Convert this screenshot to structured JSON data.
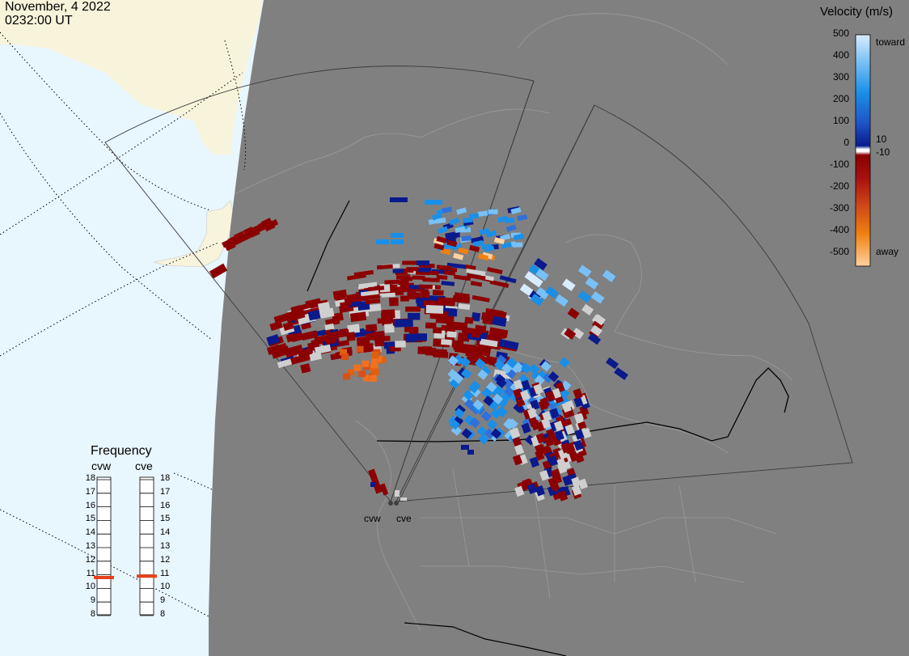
{
  "header": {
    "date": "November, 4 2022",
    "time": "0232:00 UT"
  },
  "colorbar": {
    "title": "Velocity (m/s)",
    "ticks": [
      "500",
      "400",
      "300",
      "200",
      "100",
      "0",
      "-100",
      "-200",
      "-300",
      "-400",
      "-500"
    ],
    "mid_labels": [
      "10",
      "-10"
    ],
    "end_labels": {
      "top": "toward",
      "bottom": "away"
    },
    "colors": {
      "toward_light": "#d8ecff",
      "toward_mid": "#1a8fe8",
      "toward_dark": "#0a1a8c",
      "away_dark": "#8b0000",
      "away_mid": "#e06010",
      "away_light": "#ffd2a0",
      "ground_scatter": "#cfcfcf"
    }
  },
  "frequency_panel": {
    "title": "Frequency",
    "radars": [
      {
        "name": "cvw",
        "frequency": 10.8
      },
      {
        "name": "cve",
        "frequency": 10.9
      }
    ],
    "scale": [
      "18",
      "17",
      "16",
      "15",
      "14",
      "13",
      "12",
      "11",
      "10",
      "9",
      "8"
    ],
    "indicator_color": "#e8401a"
  },
  "radar_sites": [
    {
      "name": "cvw"
    },
    {
      "name": "cve"
    }
  ],
  "map": {
    "night_color": "#808080",
    "day_ocean_color": "#e8f6fe",
    "day_land_color": "#f8f4dc"
  }
}
